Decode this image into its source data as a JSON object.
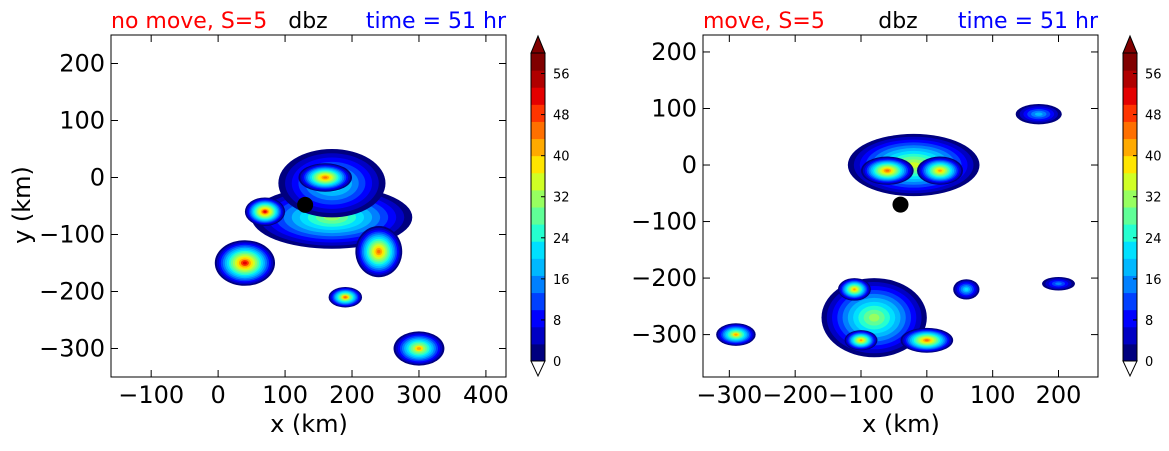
{
  "colors": {
    "title_left": "#ff0000",
    "title_center": "#000000",
    "title_right": "#0000ff",
    "colormap": [
      "#00007f",
      "#0000c4",
      "#0000ff",
      "#0040ff",
      "#0080ff",
      "#00b8ff",
      "#00e0ff",
      "#25ffd0",
      "#60ff97",
      "#97ff60",
      "#d0ff25",
      "#ffe500",
      "#ffaa00",
      "#ff7000",
      "#ff3500",
      "#e40000",
      "#b00000",
      "#800000"
    ]
  },
  "chart_data": [
    {
      "type": "heatmap",
      "title_left": "no move, S=5",
      "title_center": "dbz",
      "title_right": "time = 51 hr",
      "xlabel": "x (km)",
      "ylabel": "y (km)",
      "xlim": [
        -160,
        430
      ],
      "ylim": [
        -350,
        250
      ],
      "xticks": [
        -100,
        0,
        100,
        200,
        300,
        400
      ],
      "xtick_labels": [
        "−100",
        "0",
        "100",
        "200",
        "300",
        "400"
      ],
      "yticks": [
        -300,
        -200,
        -100,
        0,
        100,
        200
      ],
      "ytick_labels": [
        "−300",
        "−200",
        "−100",
        "0",
        "100",
        "200"
      ],
      "marker": {
        "x": 130,
        "y": -48
      },
      "cells": [
        {
          "x": 170,
          "y": -70,
          "rx": 120,
          "ry": 55,
          "peak": 36
        },
        {
          "x": 170,
          "y": -10,
          "rx": 80,
          "ry": 60,
          "peak": 30
        },
        {
          "x": 40,
          "y": -150,
          "rx": 45,
          "ry": 40,
          "peak": 54
        },
        {
          "x": 70,
          "y": -60,
          "rx": 30,
          "ry": 25,
          "peak": 54
        },
        {
          "x": 160,
          "y": 0,
          "rx": 40,
          "ry": 25,
          "peak": 50
        },
        {
          "x": 240,
          "y": -130,
          "rx": 35,
          "ry": 45,
          "peak": 50
        },
        {
          "x": 190,
          "y": -210,
          "rx": 25,
          "ry": 18,
          "peak": 48
        },
        {
          "x": 300,
          "y": -300,
          "rx": 38,
          "ry": 30,
          "peak": 44
        }
      ],
      "colorbar": {
        "ticks": [
          0,
          8,
          16,
          24,
          32,
          40,
          48,
          56
        ],
        "labels": [
          "0",
          "8",
          "16",
          "24",
          "32",
          "40",
          "48",
          "56"
        ],
        "vmin": 0,
        "vmax": 60,
        "extend": "both"
      }
    },
    {
      "type": "heatmap",
      "title_left": "move, S=5",
      "title_center": "dbz",
      "title_right": "time = 51 hr",
      "xlabel": "x (km)",
      "ylabel": "",
      "xlim": [
        -340,
        260
      ],
      "ylim": [
        -375,
        230
      ],
      "xticks": [
        -300,
        -200,
        -100,
        0,
        100,
        200
      ],
      "xtick_labels": [
        "−300",
        "−200",
        "−100",
        "0",
        "100",
        "200"
      ],
      "yticks": [
        -300,
        -200,
        -100,
        0,
        100,
        200
      ],
      "ytick_labels": [
        "−300",
        "−200",
        "−100",
        "0",
        "100",
        "200"
      ],
      "marker": {
        "x": -40,
        "y": -70
      },
      "cells": [
        {
          "x": -20,
          "y": 0,
          "rx": 100,
          "ry": 55,
          "peak": 40
        },
        {
          "x": -60,
          "y": -10,
          "rx": 40,
          "ry": 25,
          "peak": 50
        },
        {
          "x": 20,
          "y": -10,
          "rx": 35,
          "ry": 25,
          "peak": 46
        },
        {
          "x": 170,
          "y": 90,
          "rx": 35,
          "ry": 18,
          "peak": 22
        },
        {
          "x": -80,
          "y": -270,
          "rx": 80,
          "ry": 70,
          "peak": 36
        },
        {
          "x": -110,
          "y": -220,
          "rx": 25,
          "ry": 20,
          "peak": 46
        },
        {
          "x": -100,
          "y": -310,
          "rx": 25,
          "ry": 18,
          "peak": 46
        },
        {
          "x": 0,
          "y": -310,
          "rx": 40,
          "ry": 22,
          "peak": 50
        },
        {
          "x": -290,
          "y": -300,
          "rx": 30,
          "ry": 20,
          "peak": 44
        },
        {
          "x": 200,
          "y": -210,
          "rx": 25,
          "ry": 12,
          "peak": 20
        },
        {
          "x": 60,
          "y": -220,
          "rx": 20,
          "ry": 18,
          "peak": 26
        }
      ],
      "colorbar": {
        "ticks": [
          0,
          8,
          16,
          24,
          32,
          40,
          48,
          56
        ],
        "labels": [
          "0",
          "8",
          "16",
          "24",
          "32",
          "40",
          "48",
          "56"
        ],
        "vmin": 0,
        "vmax": 60,
        "extend": "both"
      }
    }
  ]
}
